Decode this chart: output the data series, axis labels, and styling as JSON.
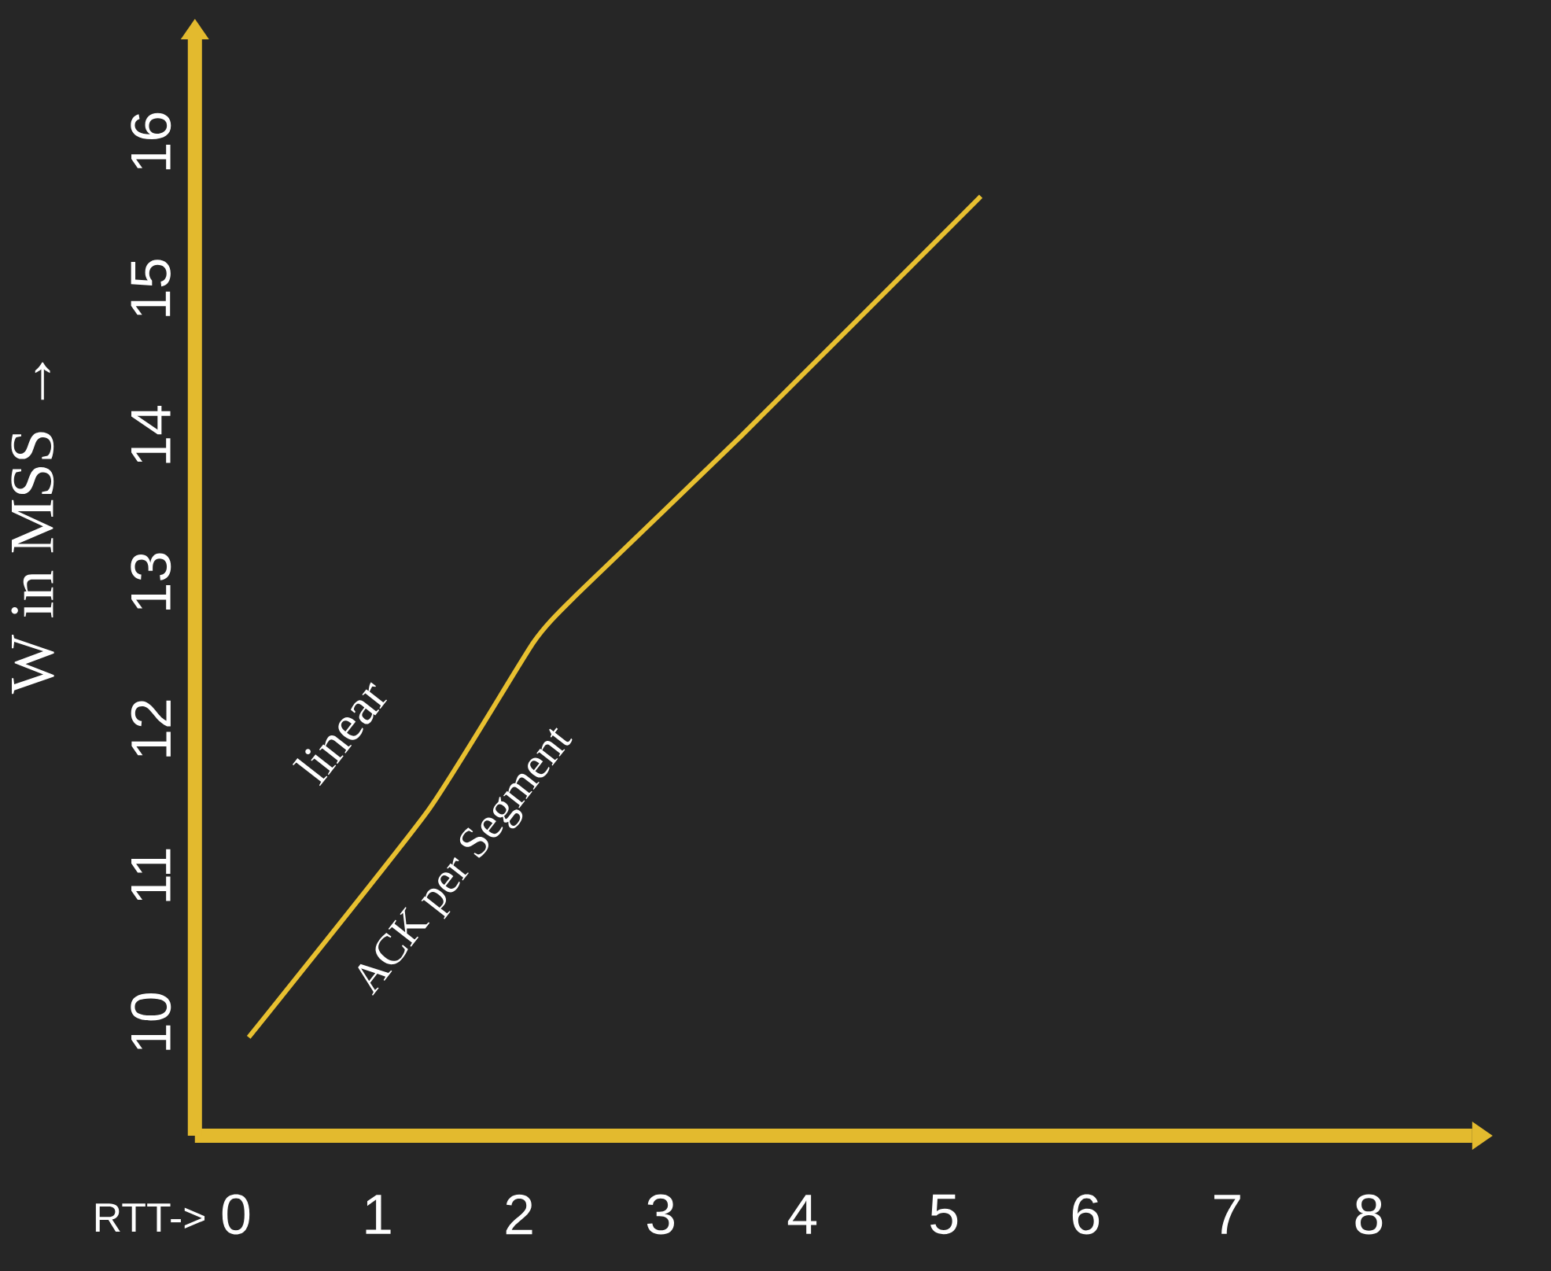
{
  "chart_data": {
    "type": "line",
    "xlabel": "RTT->",
    "ylabel": "W in MSS →",
    "x": [
      0.09,
      1.36,
      2.1,
      2.41,
      3.56,
      5.26
    ],
    "series": [
      {
        "color": "#e8c030",
        "values": [
          9.9,
          11.45,
          12.59,
          12.92,
          13.99,
          15.63
        ]
      }
    ],
    "xlim": [
      -0.29,
      8.73
    ],
    "ylim": [
      9.23,
      16.7
    ],
    "xticks": [
      0,
      1,
      2,
      3,
      4,
      5,
      6,
      7,
      8
    ],
    "yticks": [
      10,
      11,
      12,
      13,
      14,
      15,
      16
    ],
    "marker": "none",
    "line_style": "solid",
    "annotations": [
      "linear",
      "ACK per Segment"
    ]
  }
}
